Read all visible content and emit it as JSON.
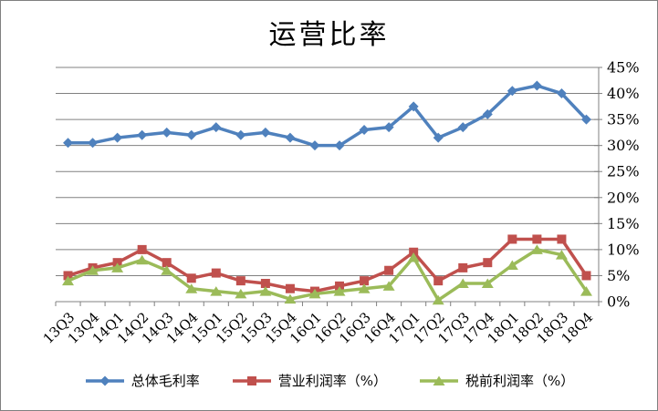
{
  "frame": {
    "background": "#FFFFFF",
    "border_color": "#808080"
  },
  "chart_data": {
    "type": "line",
    "title": "运营比率",
    "categories": [
      "13Q3",
      "13Q4",
      "14Q1",
      "14Q2",
      "14Q3",
      "14Q4",
      "15Q1",
      "15Q2",
      "15Q3",
      "15Q4",
      "16Q1",
      "16Q2",
      "16Q3",
      "16Q4",
      "17Q1",
      "17Q2",
      "17Q3",
      "17Q4",
      "18Q1",
      "18Q2",
      "18Q3",
      "18Q4"
    ],
    "series": [
      {
        "name": "总体毛利率",
        "marker": "diamond",
        "color": "#4F81BD",
        "values": [
          30.5,
          30.5,
          31.5,
          32,
          32.5,
          32,
          33.5,
          32,
          32.5,
          31.5,
          30,
          30,
          33,
          33.5,
          37.5,
          31.5,
          33.5,
          36,
          40.5,
          41.5,
          40,
          35
        ]
      },
      {
        "name": "营业利润率（%）",
        "marker": "square",
        "color": "#C0504D",
        "values": [
          5,
          6.5,
          7.5,
          10,
          7.5,
          4.5,
          5.5,
          4,
          3.5,
          2.5,
          2,
          3,
          4,
          6,
          9.5,
          4,
          6.5,
          7.5,
          12,
          12,
          12,
          5
        ]
      },
      {
        "name": "税前利润率（%）",
        "marker": "triangle",
        "color": "#9BBB59",
        "values": [
          4,
          6,
          6.5,
          8,
          6,
          2.5,
          2,
          1.5,
          2,
          0.5,
          1.5,
          2,
          2.5,
          3,
          8.5,
          0.3,
          3.5,
          3.5,
          7,
          10,
          9,
          2
        ]
      }
    ],
    "y_axis": {
      "min": 0,
      "max": 45,
      "step": 5,
      "side": "right",
      "tick_labels": [
        "45%",
        "40%",
        "35%",
        "30%",
        "25%",
        "20%",
        "15%",
        "10%",
        "5%",
        "0%"
      ]
    },
    "x_axis": {
      "label_rotation": -45
    },
    "grid": true,
    "axis_color": "#808080",
    "legend_position": "bottom"
  }
}
